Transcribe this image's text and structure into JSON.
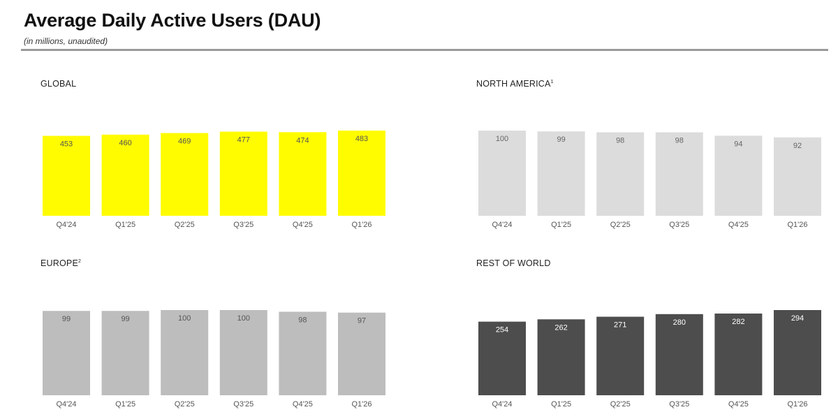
{
  "header": {
    "title": "Average Daily Active Users (DAU)",
    "subtitle": "(in millions, unaudited)"
  },
  "chart_data": [
    {
      "id": "global",
      "type": "bar",
      "title": "GLOBAL",
      "title_sup": "",
      "categories": [
        "Q4'24",
        "Q1'25",
        "Q2'25",
        "Q3'25",
        "Q4'25",
        "Q1'26"
      ],
      "values": [
        453,
        460,
        469,
        477,
        474,
        483
      ],
      "color": "#FFFC00",
      "label_color": "#555555"
    },
    {
      "id": "north-america",
      "type": "bar",
      "title": "NORTH AMERICA",
      "title_sup": "1",
      "categories": [
        "Q4'24",
        "Q1'25",
        "Q2'25",
        "Q3'25",
        "Q4'25",
        "Q1'26"
      ],
      "values": [
        100,
        99,
        98,
        98,
        94,
        92
      ],
      "color": "#DCDCDC",
      "label_color": "#666666"
    },
    {
      "id": "europe",
      "type": "bar",
      "title": "EUROPE",
      "title_sup": "2",
      "categories": [
        "Q4'24",
        "Q1'25",
        "Q2'25",
        "Q3'25",
        "Q4'25",
        "Q1'26"
      ],
      "values": [
        99,
        99,
        100,
        100,
        98,
        97
      ],
      "color": "#BDBDBD",
      "label_color": "#555555"
    },
    {
      "id": "rest-of-world",
      "type": "bar",
      "title": "REST OF WORLD",
      "title_sup": "",
      "categories": [
        "Q4'24",
        "Q1'25",
        "Q2'25",
        "Q3'25",
        "Q4'25",
        "Q1'26"
      ],
      "values": [
        254,
        262,
        271,
        280,
        282,
        294
      ],
      "color": "#4D4D4D",
      "label_color": "#FFFFFF"
    }
  ]
}
